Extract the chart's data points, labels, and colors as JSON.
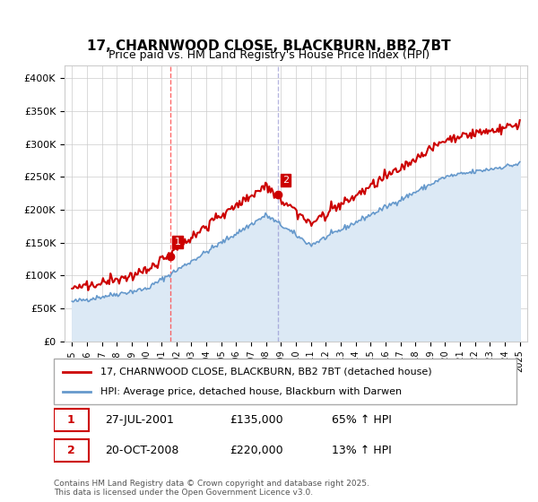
{
  "title": "17, CHARNWOOD CLOSE, BLACKBURN, BB2 7BT",
  "subtitle": "Price paid vs. HM Land Registry's House Price Index (HPI)",
  "ylabel": "",
  "ylim": [
    0,
    420000
  ],
  "yticks": [
    0,
    50000,
    100000,
    150000,
    200000,
    250000,
    300000,
    350000,
    400000
  ],
  "ytick_labels": [
    "£0",
    "£50K",
    "£100K",
    "£150K",
    "£200K",
    "£250K",
    "£300K",
    "£350K",
    "£400K"
  ],
  "sale1_date_idx": 6.58,
  "sale1_price": 135000,
  "sale1_label": "1",
  "sale1_date_str": "27-JUL-2001",
  "sale1_hpi_pct": "65% ↑ HPI",
  "sale2_date_idx": 13.81,
  "sale2_price": 220000,
  "sale2_label": "2",
  "sale2_date_str": "20-OCT-2008",
  "sale2_hpi_pct": "13% ↑ HPI",
  "hpi_line_color": "#6699cc",
  "hpi_fill_color": "#dce9f5",
  "price_line_color": "#cc0000",
  "vline1_color": "#ff4444",
  "vline2_color": "#8888cc",
  "background_color": "#ffffff",
  "grid_color": "#cccccc",
  "legend_label_price": "17, CHARNWOOD CLOSE, BLACKBURN, BB2 7BT (detached house)",
  "legend_label_hpi": "HPI: Average price, detached house, Blackburn with Darwen",
  "footer": "Contains HM Land Registry data © Crown copyright and database right 2025.\nThis data is licensed under the Open Government Licence v3.0.",
  "title_fontsize": 11,
  "subtitle_fontsize": 9,
  "tick_fontsize": 8,
  "legend_fontsize": 8
}
